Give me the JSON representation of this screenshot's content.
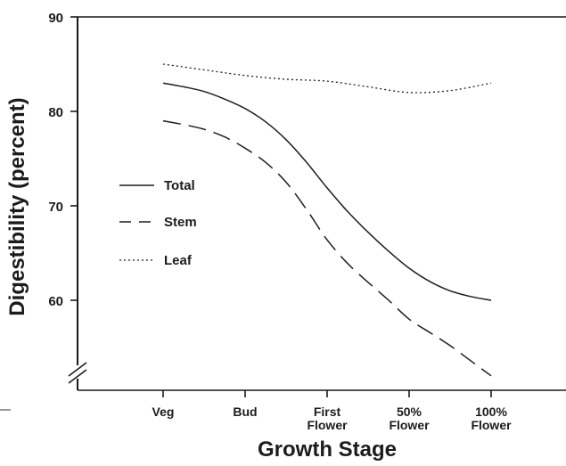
{
  "chart_data": {
    "type": "line",
    "title": "",
    "xlabel": "Growth Stage",
    "ylabel": "Digestibility (percent)",
    "ylim": [
      50,
      90
    ],
    "yticks": [
      60,
      70,
      80,
      90
    ],
    "axis_break": "y",
    "grid": false,
    "legend_position": "center-left",
    "categories": [
      [
        "Veg"
      ],
      [
        "Bud"
      ],
      [
        "First",
        "Flower"
      ],
      [
        "50%",
        "Flower"
      ],
      [
        "100%",
        "Flower"
      ]
    ],
    "series": [
      {
        "name": "Total",
        "style": "solid",
        "x": [
          0,
          0.25,
          0.5,
          0.75,
          1.0,
          1.25,
          1.5,
          1.75,
          2.0,
          2.25,
          2.5,
          2.75,
          3.0,
          3.25,
          3.5,
          3.75,
          4.0
        ],
        "values": [
          83.0,
          82.6,
          82.1,
          81.3,
          80.3,
          78.9,
          77.0,
          74.6,
          71.9,
          69.4,
          67.2,
          65.2,
          63.4,
          62.0,
          61.0,
          60.4,
          60.0
        ]
      },
      {
        "name": "Stem",
        "style": "dashed",
        "x": [
          0,
          0.25,
          0.5,
          0.75,
          1.0,
          1.25,
          1.5,
          1.75,
          2.0,
          2.25,
          2.5,
          2.75,
          3.0,
          3.25,
          3.5,
          3.75,
          4.0
        ],
        "values": [
          79.0,
          78.6,
          78.1,
          77.3,
          76.1,
          74.6,
          72.5,
          69.6,
          66.4,
          63.9,
          61.9,
          60.0,
          58.0,
          56.6,
          55.2,
          53.6,
          52.0
        ]
      },
      {
        "name": "Leaf",
        "style": "dotted",
        "x": [
          0,
          0.5,
          1.0,
          1.5,
          2.0,
          2.5,
          3.0,
          3.5,
          4.0
        ],
        "values": [
          85.0,
          84.4,
          83.8,
          83.4,
          83.2,
          82.6,
          82.0,
          82.2,
          83.0
        ]
      }
    ]
  }
}
